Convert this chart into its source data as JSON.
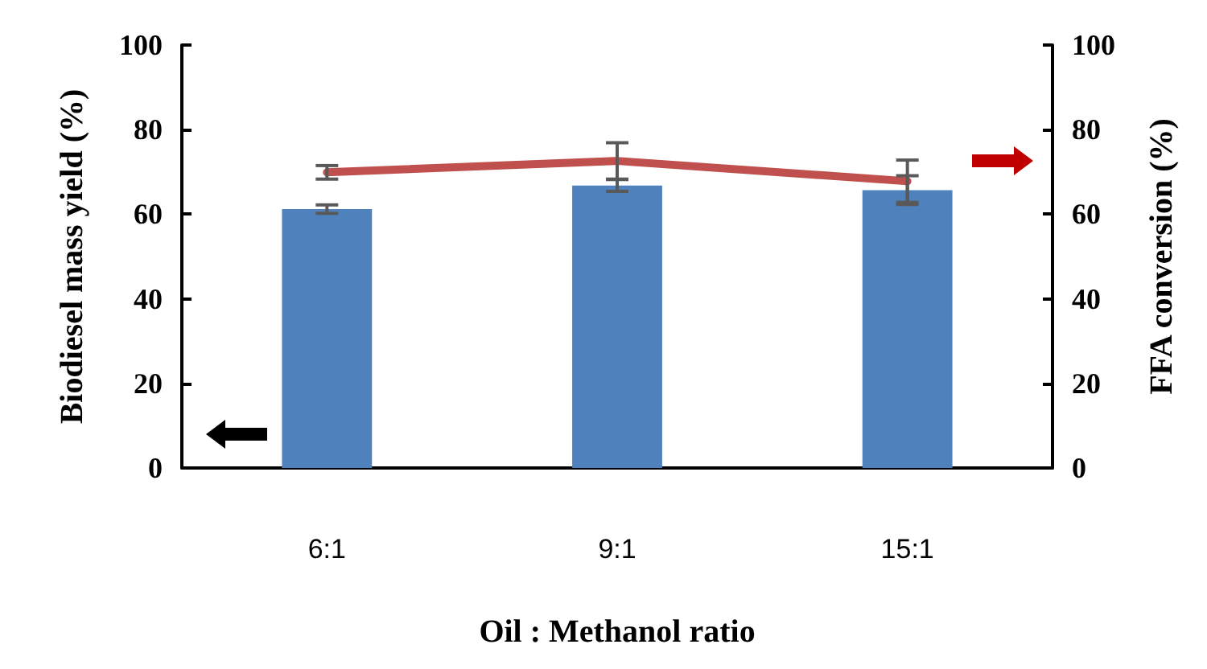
{
  "chart_data": {
    "type": "bar",
    "xlabel": "Oil : Methanol ratio",
    "ylabel": "Biodiesel mass yield (%)",
    "y2label": "FFA conversion (%)",
    "categories": [
      "6:1",
      "9:1",
      "15:1"
    ],
    "series": [
      {
        "color": "#4f81bd",
        "values": [
          61.2,
          66.8,
          65.7
        ],
        "errors": [
          1.0,
          1.4,
          3.4
        ]
      },
      {
        "type": "line",
        "axis": "y2",
        "color": "#c0504d",
        "values": [
          69.9,
          72.6,
          67.8
        ],
        "errors": [
          1.6,
          4.3,
          5.0
        ]
      }
    ],
    "ylim": [
      0,
      100
    ],
    "yticks": [
      0,
      20,
      40,
      60,
      80,
      100
    ],
    "y2lim": [
      0,
      100
    ],
    "y2ticks": [
      0,
      20,
      40,
      60,
      80,
      100
    ],
    "grid": false,
    "marker": "none",
    "line_style": "solid"
  }
}
